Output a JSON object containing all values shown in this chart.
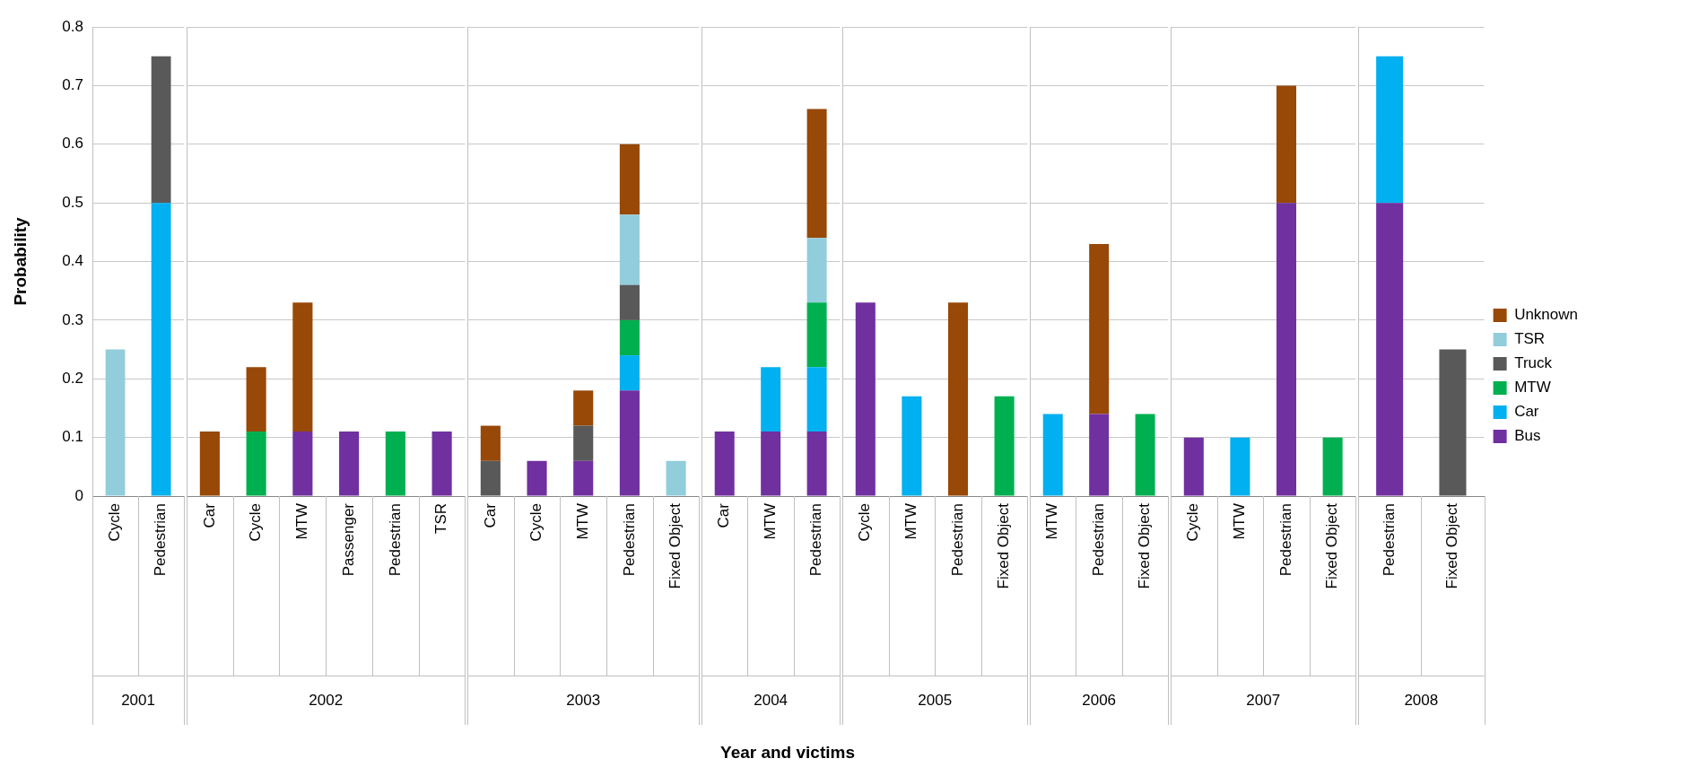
{
  "chart_data": [
    {
      "type": "bar",
      "stacked": true,
      "xlabel": "2001",
      "ylabel": "Probability",
      "annotations": [
        "Year and victims"
      ],
      "categories": [
        "Cycle",
        "Pedestrian"
      ],
      "ylim": [
        0,
        0.8
      ],
      "yticks": [
        0,
        0.1,
        0.2,
        0.3,
        0.4,
        0.5,
        0.6,
        0.7,
        0.8
      ],
      "grid": "y",
      "series": [
        {
          "color": "#00b0f0",
          "values": [
            null,
            0.5
          ]
        },
        {
          "color": "#595959",
          "values": [
            null,
            0.25
          ]
        },
        {
          "color": "#92cddc",
          "values": [
            0.25,
            null
          ]
        }
      ]
    },
    {
      "type": "bar",
      "stacked": true,
      "xlabel": "2002",
      "tick_labels": "x",
      "categories": [
        "Car",
        "Cycle",
        "MTW",
        "Passenger",
        "Pedestrian",
        "TSR"
      ],
      "ylim": [
        0,
        0.8
      ],
      "yticks": [
        0,
        0.1,
        0.2,
        0.3,
        0.4,
        0.5,
        0.6,
        0.7,
        0.8
      ],
      "grid": "y",
      "series": [
        {
          "color": "#7030a0",
          "values": [
            null,
            null,
            0.11,
            0.11,
            null,
            0.11
          ]
        },
        {
          "color": "#00b050",
          "values": [
            null,
            0.11,
            null,
            null,
            0.11,
            null
          ]
        },
        {
          "color": "#984807",
          "values": [
            0.11,
            0.11,
            0.22,
            null,
            null,
            null
          ]
        }
      ]
    },
    {
      "type": "bar",
      "stacked": true,
      "xlabel": "2003",
      "tick_labels": "x",
      "categories": [
        "Car",
        "Cycle",
        "MTW",
        "Pedestrian",
        "Fixed Object"
      ],
      "ylim": [
        0,
        0.8
      ],
      "yticks": [
        0,
        0.1,
        0.2,
        0.3,
        0.4,
        0.5,
        0.6,
        0.7,
        0.8
      ],
      "grid": "y",
      "series": [
        {
          "color": "#7030a0",
          "values": [
            null,
            0.06,
            0.06,
            0.18,
            null
          ]
        },
        {
          "color": "#00b0f0",
          "values": [
            null,
            null,
            null,
            0.06,
            null
          ]
        },
        {
          "color": "#00b050",
          "values": [
            null,
            null,
            null,
            0.06,
            null
          ]
        },
        {
          "color": "#595959",
          "values": [
            0.06,
            null,
            0.06,
            0.06,
            null
          ]
        },
        {
          "color": "#92cddc",
          "values": [
            null,
            null,
            null,
            0.12,
            0.06
          ]
        },
        {
          "color": "#984807",
          "values": [
            0.06,
            null,
            0.06,
            0.12,
            null
          ]
        }
      ]
    },
    {
      "type": "bar",
      "stacked": true,
      "xlabel": "2004",
      "tick_labels": "x",
      "categories": [
        "Car",
        "MTW",
        "Pedestrian"
      ],
      "ylim": [
        0,
        0.8
      ],
      "yticks": [
        0,
        0.1,
        0.2,
        0.3,
        0.4,
        0.5,
        0.6,
        0.7,
        0.8
      ],
      "grid": "y",
      "series": [
        {
          "color": "#7030a0",
          "values": [
            0.11,
            0.11,
            0.11
          ]
        },
        {
          "color": "#00b0f0",
          "values": [
            null,
            0.11,
            0.11
          ]
        },
        {
          "color": "#00b050",
          "values": [
            null,
            null,
            0.11
          ]
        },
        {
          "color": "#92cddc",
          "values": [
            null,
            null,
            0.11
          ]
        },
        {
          "color": "#984807",
          "values": [
            null,
            null,
            0.22
          ]
        }
      ]
    },
    {
      "type": "bar",
      "stacked": true,
      "xlabel": "2005",
      "tick_labels": "x",
      "categories": [
        "Cycle",
        "MTW",
        "Pedestrian",
        "Fixed Object"
      ],
      "ylim": [
        0,
        0.8
      ],
      "yticks": [
        0,
        0.1,
        0.2,
        0.3,
        0.4,
        0.5,
        0.6,
        0.7,
        0.8
      ],
      "grid": "y",
      "series": [
        {
          "color": "#7030a0",
          "values": [
            0.33,
            null,
            null,
            null
          ]
        },
        {
          "color": "#00b0f0",
          "values": [
            null,
            0.17,
            null,
            null
          ]
        },
        {
          "color": "#00b050",
          "values": [
            null,
            null,
            null,
            0.17
          ]
        },
        {
          "color": "#984807",
          "values": [
            null,
            null,
            0.33,
            null
          ]
        }
      ]
    },
    {
      "type": "bar",
      "stacked": true,
      "xlabel": "2006",
      "tick_labels": "x",
      "categories": [
        "MTW",
        "Pedestrian",
        "Fixed Object"
      ],
      "ylim": [
        0,
        0.8
      ],
      "yticks": [
        0,
        0.1,
        0.2,
        0.3,
        0.4,
        0.5,
        0.6,
        0.7,
        0.8
      ],
      "grid": "y",
      "series": [
        {
          "color": "#7030a0",
          "values": [
            null,
            0.14,
            null
          ]
        },
        {
          "color": "#00b0f0",
          "values": [
            0.14,
            null,
            null
          ]
        },
        {
          "color": "#00b050",
          "values": [
            null,
            null,
            0.14
          ]
        },
        {
          "color": "#984807",
          "values": [
            null,
            0.29,
            null
          ]
        }
      ]
    },
    {
      "type": "bar",
      "stacked": true,
      "xlabel": "2007",
      "tick_labels": "x",
      "categories": [
        "Cycle",
        "MTW",
        "Pedestrian",
        "Fixed Object"
      ],
      "ylim": [
        0,
        0.8
      ],
      "yticks": [
        0,
        0.1,
        0.2,
        0.3,
        0.4,
        0.5,
        0.6,
        0.7,
        0.8
      ],
      "grid": "y",
      "series": [
        {
          "color": "#7030a0",
          "values": [
            0.1,
            null,
            0.5,
            null
          ]
        },
        {
          "color": "#00b0f0",
          "values": [
            null,
            0.1,
            null,
            null
          ]
        },
        {
          "color": "#00b050",
          "values": [
            null,
            null,
            null,
            0.1
          ]
        },
        {
          "color": "#984807",
          "values": [
            null,
            null,
            0.2,
            null
          ]
        }
      ]
    },
    {
      "type": "bar",
      "stacked": true,
      "xlabel": "2008",
      "tick_labels": "x",
      "categories": [
        "Pedestrian",
        "Fixed Object"
      ],
      "ylim": [
        0,
        0.8
      ],
      "yticks": [
        0,
        0.1,
        0.2,
        0.3,
        0.4,
        0.5,
        0.6,
        0.7,
        0.8
      ],
      "grid": "y",
      "legend": "right",
      "series": [
        {
          "name": "Bus",
          "color": "#7030a0",
          "values": [
            0.5,
            null
          ]
        },
        {
          "name": "Car",
          "color": "#00b0f0",
          "values": [
            0.25,
            null
          ]
        },
        {
          "name": "MTW",
          "color": "#00b050",
          "values": [
            null,
            null
          ]
        },
        {
          "name": "Truck",
          "color": "#595959",
          "values": [
            null,
            0.25
          ]
        },
        {
          "name": "TSR",
          "color": "#92cddc",
          "values": [
            null,
            null
          ]
        },
        {
          "name": "Unknown",
          "color": "#984807",
          "values": [
            null,
            null
          ]
        }
      ]
    }
  ]
}
